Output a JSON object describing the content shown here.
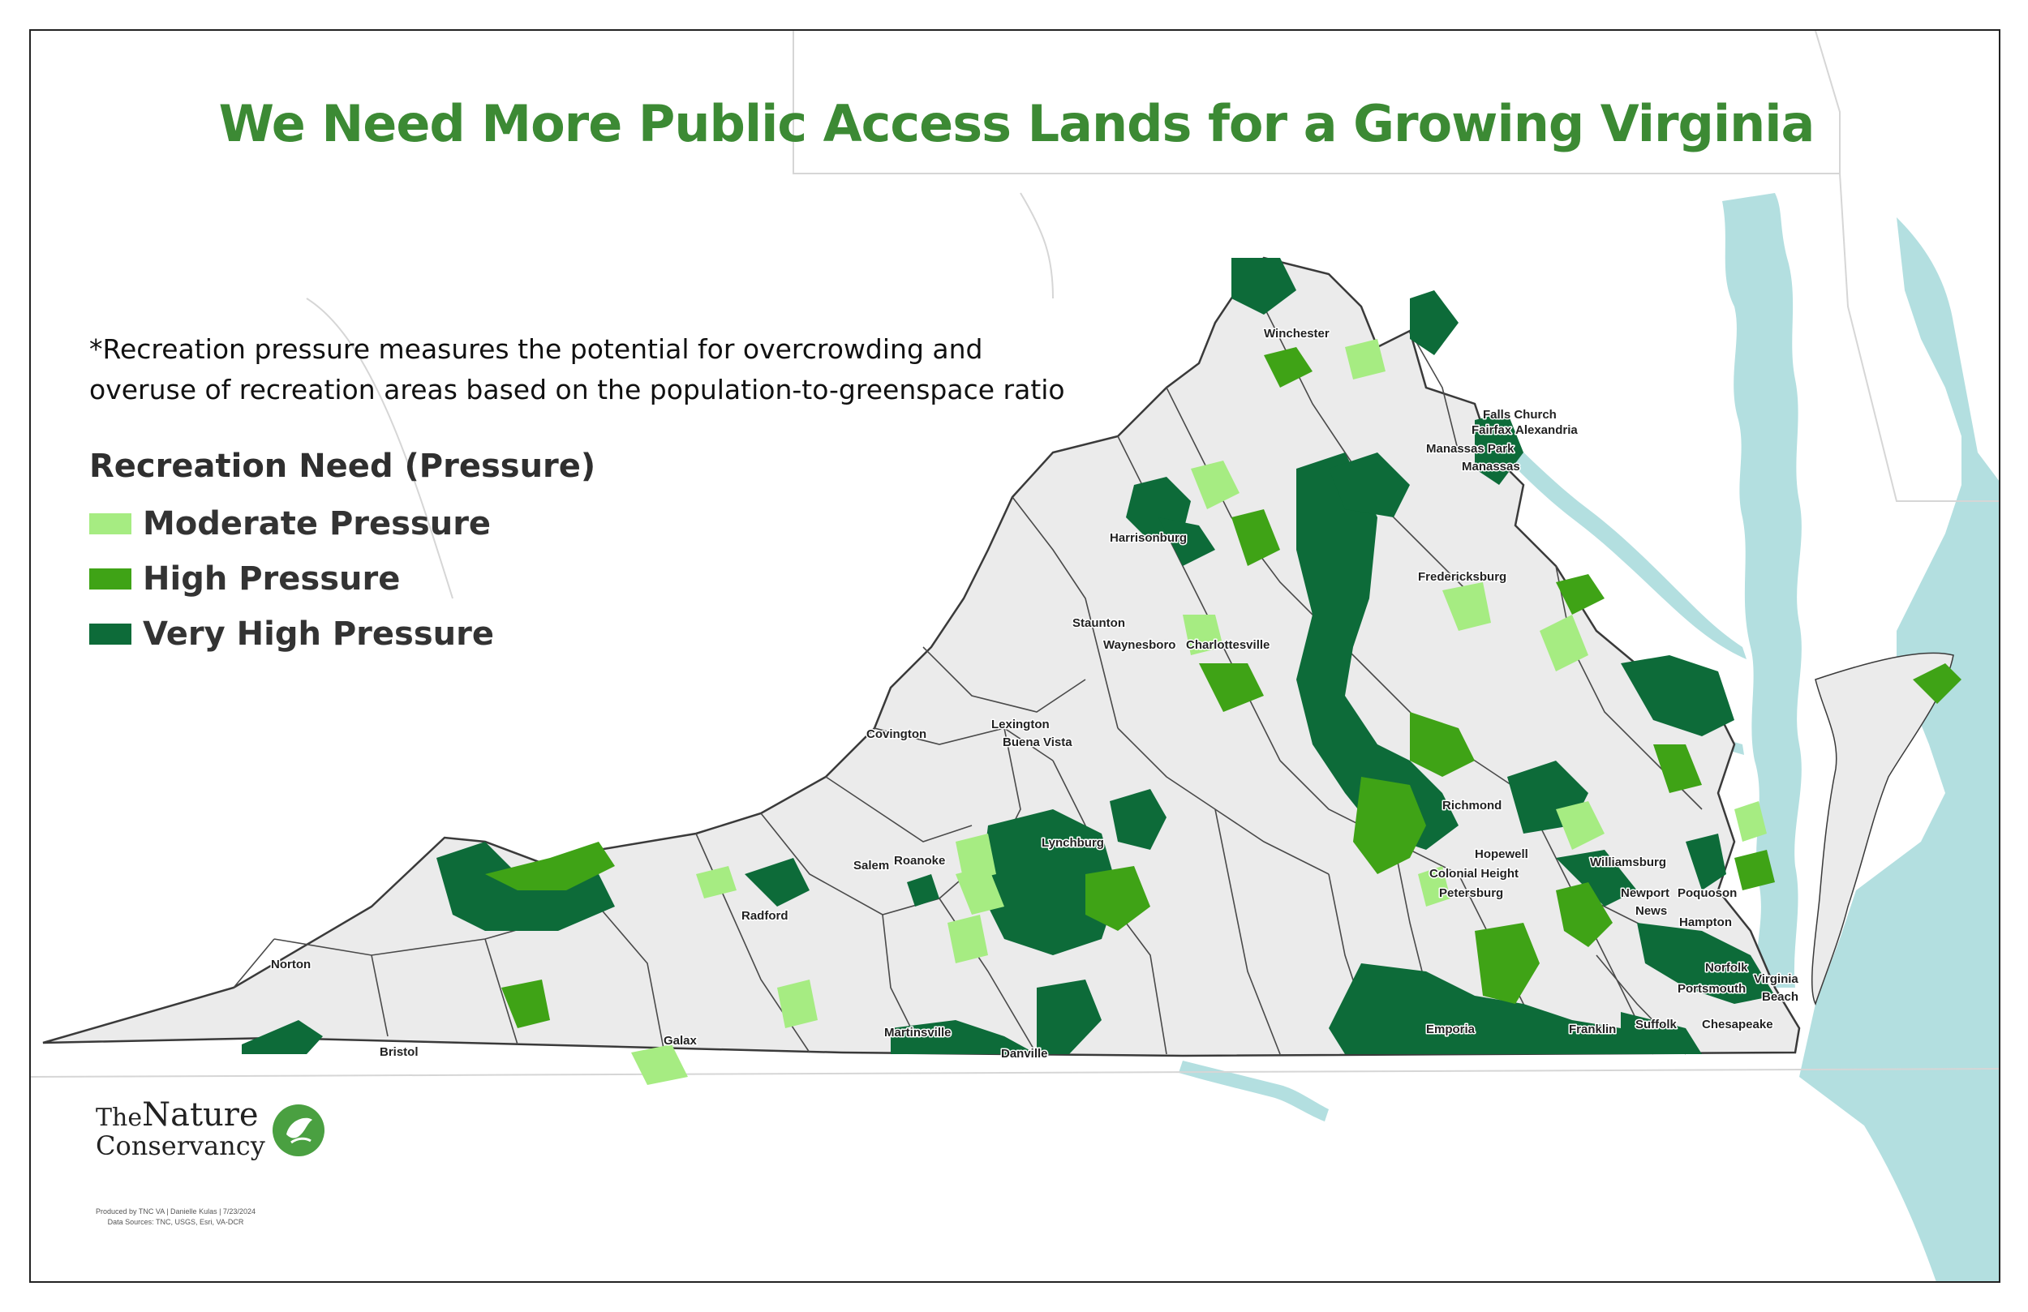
{
  "title": "We Need More Public Access Lands for a Growing Virginia",
  "footnote": {
    "line1": "*Recreation pressure measures the potential for overcrowding and",
    "line2": "overuse of recreation areas based on the population-to-greenspace ratio"
  },
  "legend": {
    "title": "Recreation Need (Pressure)",
    "items": [
      {
        "label": "Moderate Pressure",
        "color": "#a6ec82"
      },
      {
        "label": "High Pressure",
        "color": "#3fa316"
      },
      {
        "label": "Very High Pressure",
        "color": "#0d6b39"
      }
    ]
  },
  "colors": {
    "land": "#ebebeb",
    "water": "#b3dfe0",
    "county_border": "#3a3a3a",
    "title_green": "#3c8a34"
  },
  "cities": [
    "Winchester",
    "Falls Church",
    "Fairfax",
    "Alexandria",
    "Manassas Park",
    "Manassas",
    "Harrisonburg",
    "Fredericksburg",
    "Staunton",
    "Waynesboro",
    "Charlottesville",
    "Lexington",
    "Buena Vista",
    "Covington",
    "Richmond",
    "Salem",
    "Roanoke",
    "Lynchburg",
    "Hopewell",
    "Colonial Height",
    "Petersburg",
    "Williamsburg",
    "Newport",
    "News",
    "Poquoson",
    "Hampton",
    "Radford",
    "Norfolk",
    "Virginia",
    "Beach",
    "Portsmouth",
    "Norton",
    "Martinsville",
    "Danville",
    "Emporia",
    "Franklin",
    "Suffolk",
    "Chesapeake",
    "Galax",
    "Bristol"
  ],
  "logo": {
    "line1_a": "The",
    "line1_b": "Nature",
    "line2": "Conservancy",
    "icon": "leaf-globe-icon"
  },
  "credits": {
    "line1": "Produced by TNC VA | Danielle Kulas | 7/23/2024",
    "line2": "Data Sources: TNC, USGS, Esri, VA-DCR"
  }
}
